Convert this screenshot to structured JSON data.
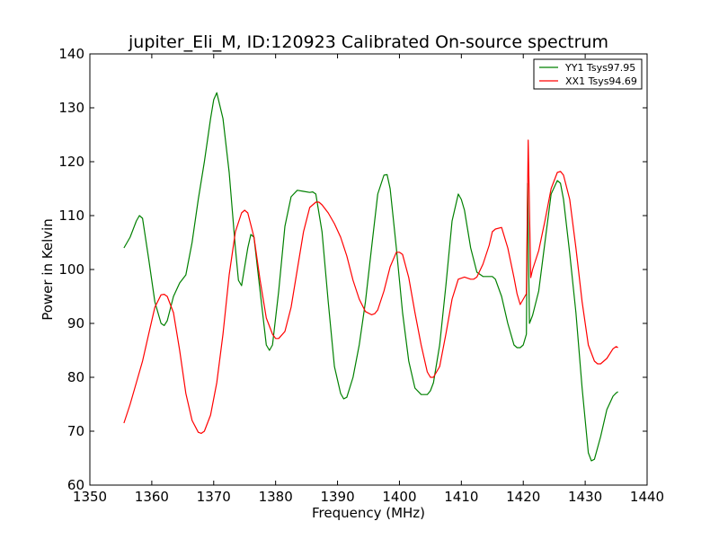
{
  "chart_data": {
    "type": "line",
    "title": "jupiter_Eli_M, ID:120923 Calibrated On-source spectrum",
    "xlabel": "Frequency (MHz)",
    "ylabel": "Power in Kelvin",
    "xlim": [
      1350,
      1440
    ],
    "ylim": [
      60,
      140
    ],
    "xticks": [
      1350,
      1360,
      1370,
      1380,
      1390,
      1400,
      1410,
      1420,
      1430,
      1440
    ],
    "yticks": [
      60,
      70,
      80,
      90,
      100,
      110,
      120,
      130,
      140
    ],
    "grid": false,
    "legend_position": "top-right",
    "series": [
      {
        "name": "YY1 Tsys97.95",
        "color": "#008000",
        "x": [
          1355.5,
          1356.5,
          1357.5,
          1358.0,
          1358.5,
          1359.5,
          1360.5,
          1361.5,
          1362.0,
          1362.5,
          1363.5,
          1364.5,
          1365.5,
          1366.5,
          1367.5,
          1368.5,
          1369.5,
          1370.0,
          1370.5,
          1371.5,
          1372.5,
          1373.5,
          1374.0,
          1374.5,
          1375.5,
          1376.0,
          1376.5,
          1377.5,
          1378.5,
          1379.0,
          1379.5,
          1380.5,
          1381.5,
          1382.5,
          1383.5,
          1384.5,
          1385.5,
          1386.0,
          1386.5,
          1387.5,
          1388.5,
          1389.5,
          1390.5,
          1391.0,
          1391.5,
          1392.5,
          1393.5,
          1394.5,
          1395.5,
          1396.5,
          1397.5,
          1398.0,
          1398.5,
          1399.5,
          1400.5,
          1401.5,
          1402.5,
          1403.5,
          1404.5,
          1405.0,
          1405.5,
          1406.5,
          1407.5,
          1408.5,
          1409.5,
          1410.0,
          1410.5,
          1411.5,
          1412.5,
          1413.5,
          1414.5,
          1415.0,
          1415.5,
          1416.5,
          1417.5,
          1418.5,
          1419.0,
          1419.5,
          1420.0,
          1420.5,
          1420.7,
          1421.0,
          1421.5,
          1422.5,
          1423.5,
          1424.5,
          1425.5,
          1426.0,
          1426.5,
          1427.5,
          1428.5,
          1429.5,
          1430.5,
          1431.0,
          1431.5,
          1432.5,
          1433.5,
          1434.5,
          1435.0,
          1435.3
        ],
        "y": [
          104,
          106,
          109,
          110,
          109.5,
          102,
          94,
          90,
          89.6,
          90.5,
          95,
          97.5,
          99,
          105,
          113,
          120,
          128,
          131.5,
          132.8,
          128,
          118,
          104,
          98,
          97,
          104,
          106.5,
          106,
          96,
          86,
          85,
          86,
          96,
          108,
          113.5,
          114.7,
          114.5,
          114.3,
          114.4,
          114.0,
          107,
          94,
          82,
          77,
          76,
          76.3,
          80,
          86,
          94,
          104,
          114,
          117.5,
          117.6,
          115,
          104,
          92,
          83,
          78,
          76.8,
          76.8,
          77.5,
          79,
          86,
          97,
          109,
          114,
          113,
          111,
          104,
          99.5,
          98.7,
          98.7,
          98.7,
          98.2,
          95,
          90,
          86,
          85.5,
          85.5,
          86,
          88,
          116,
          90,
          91.5,
          96,
          105,
          114,
          116.5,
          116,
          113,
          103,
          92,
          78,
          66,
          64.5,
          64.8,
          69,
          74,
          76.5,
          77.1,
          77.3
        ]
      },
      {
        "name": "XX1 Tsys94.69",
        "color": "#ff0000",
        "x": [
          1355.5,
          1356.5,
          1357.5,
          1358.5,
          1359.5,
          1360.5,
          1361.5,
          1362.0,
          1362.5,
          1363.5,
          1364.5,
          1365.5,
          1366.5,
          1367.5,
          1368.0,
          1368.5,
          1369.5,
          1370.5,
          1371.5,
          1372.5,
          1373.5,
          1374.5,
          1375.0,
          1375.5,
          1376.5,
          1377.5,
          1378.5,
          1379.5,
          1380.0,
          1380.5,
          1381.5,
          1382.5,
          1383.5,
          1384.5,
          1385.5,
          1386.5,
          1387.0,
          1387.5,
          1388.5,
          1389.5,
          1390.5,
          1391.5,
          1392.5,
          1393.5,
          1394.5,
          1395.5,
          1396.0,
          1396.5,
          1397.5,
          1398.5,
          1399.5,
          1400.0,
          1400.5,
          1401.5,
          1402.5,
          1403.5,
          1404.5,
          1405.0,
          1405.5,
          1406.5,
          1407.5,
          1408.5,
          1409.5,
          1410.5,
          1411.5,
          1412.0,
          1412.5,
          1413.5,
          1414.5,
          1415.0,
          1415.5,
          1416.5,
          1417.5,
          1418.5,
          1419.0,
          1419.5,
          1420.5,
          1420.8,
          1421.2,
          1421.5,
          1422.5,
          1423.5,
          1424.5,
          1425.5,
          1426.0,
          1426.5,
          1427.5,
          1428.5,
          1429.5,
          1430.5,
          1431.5,
          1432.0,
          1432.5,
          1433.5,
          1434.5,
          1435.0,
          1435.3
        ],
        "y": [
          71.5,
          75,
          79,
          83,
          88,
          93,
          95.3,
          95.4,
          95,
          92,
          85,
          77,
          72,
          69.8,
          69.6,
          70,
          73,
          79,
          88,
          99,
          107,
          110.5,
          111,
          110.5,
          106,
          98,
          91,
          88,
          87.2,
          87.2,
          88.5,
          93,
          100,
          107,
          111.5,
          112.5,
          112.5,
          112,
          110.5,
          108.5,
          106,
          102.5,
          98,
          94.5,
          92.2,
          91.6,
          91.8,
          92.5,
          96,
          100.5,
          103.2,
          103.2,
          102.8,
          98.5,
          92,
          86,
          81,
          80,
          80,
          82,
          88,
          94.5,
          98.2,
          98.6,
          98.2,
          98.2,
          98.6,
          101,
          104.5,
          107,
          107.5,
          107.8,
          104,
          98.5,
          95.5,
          93.5,
          95.5,
          124,
          98.5,
          100,
          103.5,
          109,
          115,
          118,
          118.2,
          117.5,
          113,
          104,
          94,
          86,
          83,
          82.5,
          82.5,
          83.5,
          85.3,
          85.7,
          85.5
        ]
      }
    ]
  }
}
